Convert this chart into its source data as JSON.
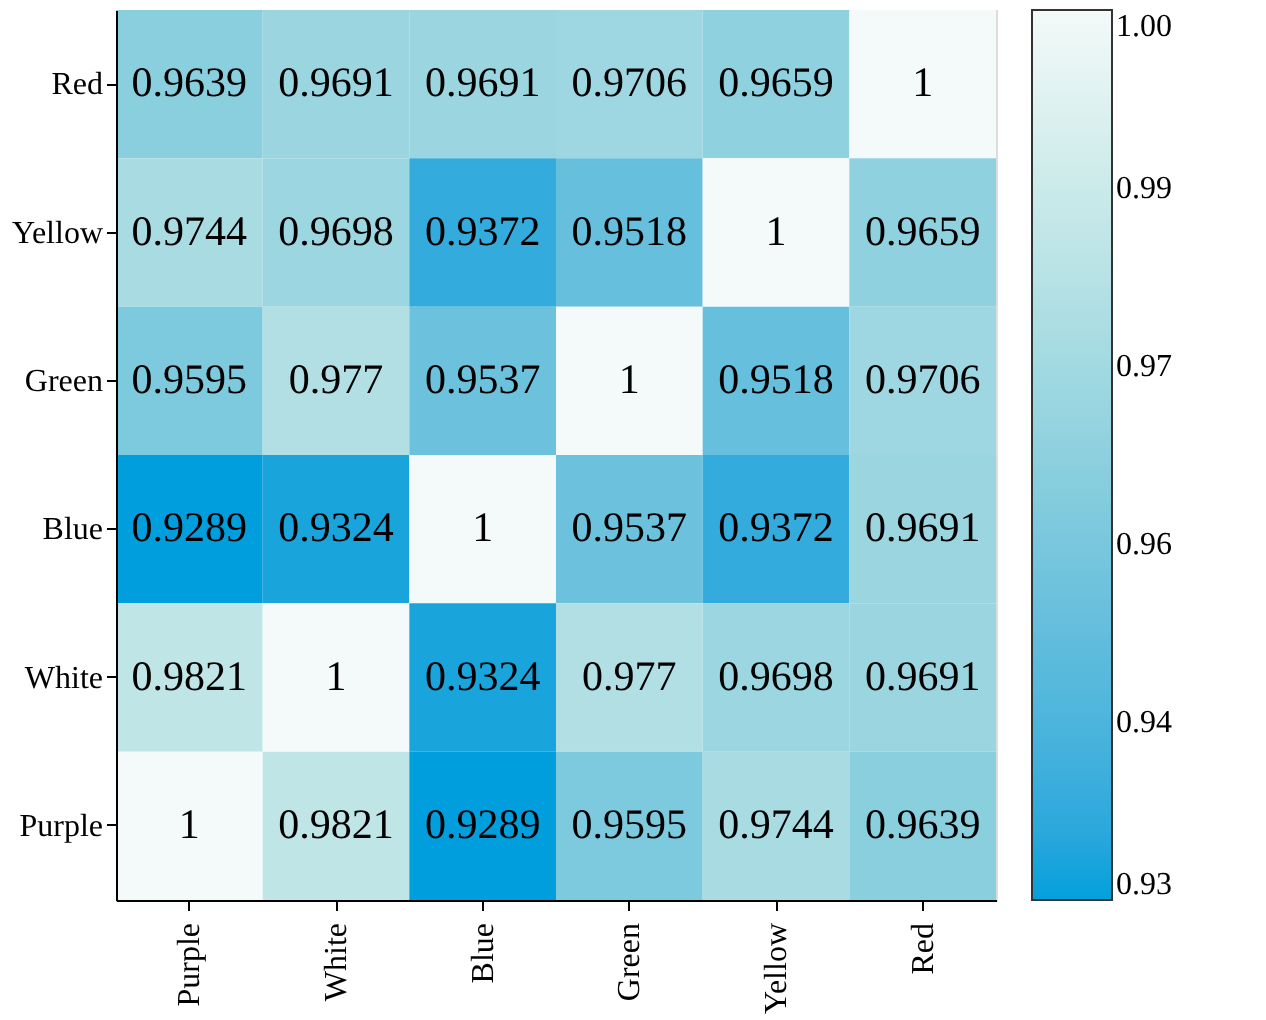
{
  "chart_data": {
    "type": "heatmap",
    "categories": [
      "Purple",
      "White",
      "Blue",
      "Green",
      "Yellow",
      "Red"
    ],
    "y_categories": [
      "Red",
      "Yellow",
      "Green",
      "Blue",
      "White",
      "Purple"
    ],
    "cells": [
      [
        0.9639,
        0.9691,
        0.9691,
        0.9706,
        0.9659,
        1
      ],
      [
        0.9744,
        0.9698,
        0.9372,
        0.9518,
        1,
        0.9659
      ],
      [
        0.9595,
        0.977,
        0.9537,
        1,
        0.9518,
        0.9706
      ],
      [
        0.9289,
        0.9324,
        1,
        0.9537,
        0.9372,
        0.9691
      ],
      [
        0.9821,
        1,
        0.9324,
        0.977,
        0.9698,
        0.9691
      ],
      [
        1,
        0.9821,
        0.9289,
        0.9595,
        0.9744,
        0.9639
      ]
    ],
    "data_labels": true,
    "clim": [
      0.93,
      1.0
    ],
    "cticks": [
      {
        "value": 0.93,
        "label": "0.93"
      },
      {
        "value": 0.944,
        "label": "0.94"
      },
      {
        "value": 0.958,
        "label": "0.96"
      },
      {
        "value": 0.972,
        "label": "0.97"
      },
      {
        "value": 0.986,
        "label": "0.99"
      },
      {
        "value": 1.0,
        "label": "1.00"
      }
    ],
    "colors": [
      "#03a0dc",
      "#f3faf9"
    ]
  }
}
